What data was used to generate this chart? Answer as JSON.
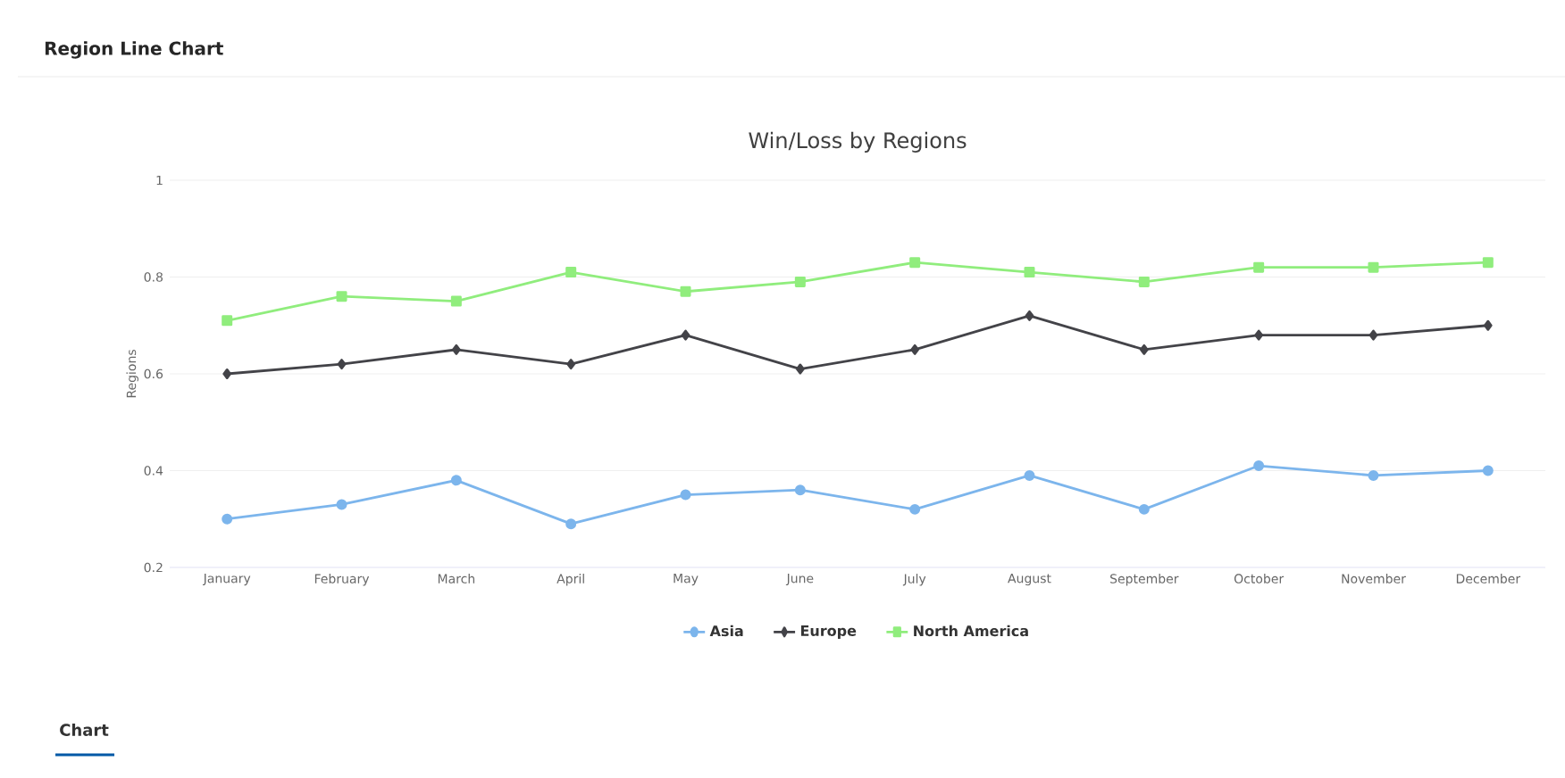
{
  "chart_data": {
    "type": "line",
    "title": "Win/Loss by Regions",
    "ylabel": "Regions",
    "annotations": [
      "Region Line Chart",
      "Chart"
    ],
    "categories": [
      "January",
      "February",
      "March",
      "April",
      "May",
      "June",
      "July",
      "August",
      "September",
      "October",
      "November",
      "December"
    ],
    "series": [
      {
        "name": "Asia",
        "color": "#7cb5ec",
        "marker": "circle",
        "values": [
          0.3,
          0.33,
          0.38,
          0.29,
          0.35,
          0.36,
          0.32,
          0.39,
          0.32,
          0.41,
          0.39,
          0.4
        ]
      },
      {
        "name": "Europe",
        "color": "#434348",
        "marker": "diamond",
        "values": [
          0.6,
          0.62,
          0.65,
          0.62,
          0.68,
          0.61,
          0.65,
          0.72,
          0.65,
          0.68,
          0.68,
          0.7
        ]
      },
      {
        "name": "North America",
        "color": "#90ed7d",
        "marker": "square",
        "values": [
          0.71,
          0.76,
          0.75,
          0.81,
          0.77,
          0.79,
          0.83,
          0.81,
          0.79,
          0.82,
          0.82,
          0.83
        ]
      }
    ],
    "ylim": [
      0.2,
      1
    ],
    "yticks": [
      0.2,
      0.4,
      0.6,
      0.8,
      1
    ],
    "grid": "y",
    "legend": "bottom",
    "line_style": "solid"
  }
}
